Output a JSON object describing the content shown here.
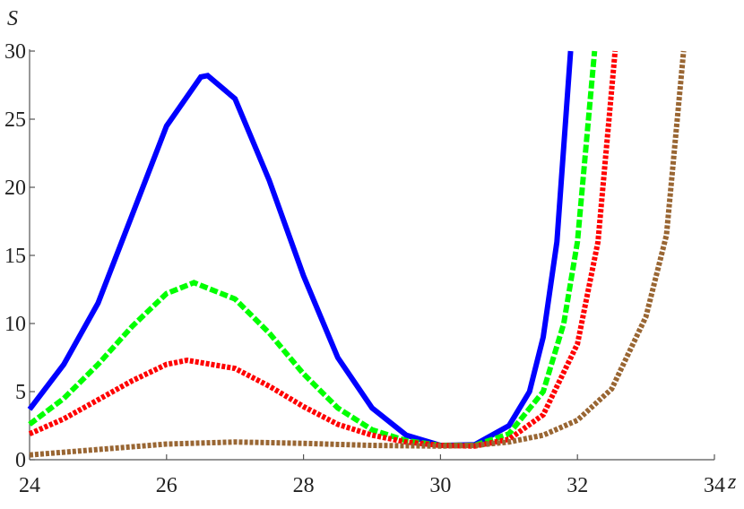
{
  "chart_data": {
    "type": "line",
    "x_label": "z",
    "y_label": "S",
    "xlim": [
      24,
      34
    ],
    "ylim": [
      0,
      30
    ],
    "xticks": [
      24,
      26,
      28,
      30,
      32,
      34
    ],
    "yticks": [
      0,
      5,
      10,
      15,
      20,
      25,
      30
    ],
    "series": [
      {
        "color": "#0000ff",
        "dash": "solid",
        "x": [
          24,
          24.5,
          25,
          25.5,
          26,
          26.5,
          26.6,
          27,
          27.5,
          28,
          28.5,
          29,
          29.5,
          30,
          30.5,
          31,
          31.3,
          31.5,
          31.7,
          31.9
        ],
        "values": [
          3.7,
          7,
          11.5,
          18,
          24.5,
          28.1,
          28.2,
          26.5,
          20.5,
          13.5,
          7.5,
          3.8,
          1.8,
          1.05,
          1.1,
          2.5,
          5,
          9,
          16,
          30
        ]
      },
      {
        "color": "#00ff00",
        "dash": "dashed",
        "x": [
          24,
          24.5,
          25,
          25.5,
          26,
          26.4,
          27,
          27.5,
          28,
          28.5,
          29,
          29.5,
          30,
          30.5,
          31,
          31.5,
          31.8,
          32,
          32.25
        ],
        "values": [
          2.6,
          4.5,
          7,
          9.8,
          12.2,
          13,
          11.8,
          9.3,
          6.3,
          3.8,
          2.2,
          1.4,
          1.05,
          1.05,
          1.9,
          5,
          10,
          16,
          30
        ]
      },
      {
        "color": "#ff0000",
        "dash": "dotted",
        "x": [
          24,
          24.5,
          25,
          25.5,
          26,
          26.3,
          27,
          27.5,
          28,
          28.5,
          29,
          29.5,
          30,
          30.5,
          31,
          31.5,
          32,
          32.3,
          32.55
        ],
        "values": [
          1.9,
          3,
          4.4,
          5.8,
          7,
          7.3,
          6.7,
          5.4,
          3.9,
          2.6,
          1.8,
          1.3,
          1.05,
          1,
          1.5,
          3.3,
          8.5,
          16,
          30
        ]
      },
      {
        "color": "#996633",
        "dash": "dotted",
        "x": [
          24,
          25,
          26,
          27,
          28,
          29,
          30,
          30.5,
          31,
          31.5,
          32,
          32.5,
          33,
          33.3,
          33.55
        ],
        "values": [
          0.35,
          0.75,
          1.15,
          1.3,
          1.2,
          1.05,
          1,
          1.05,
          1.3,
          1.8,
          2.9,
          5.2,
          10.5,
          16.5,
          30
        ]
      }
    ]
  }
}
